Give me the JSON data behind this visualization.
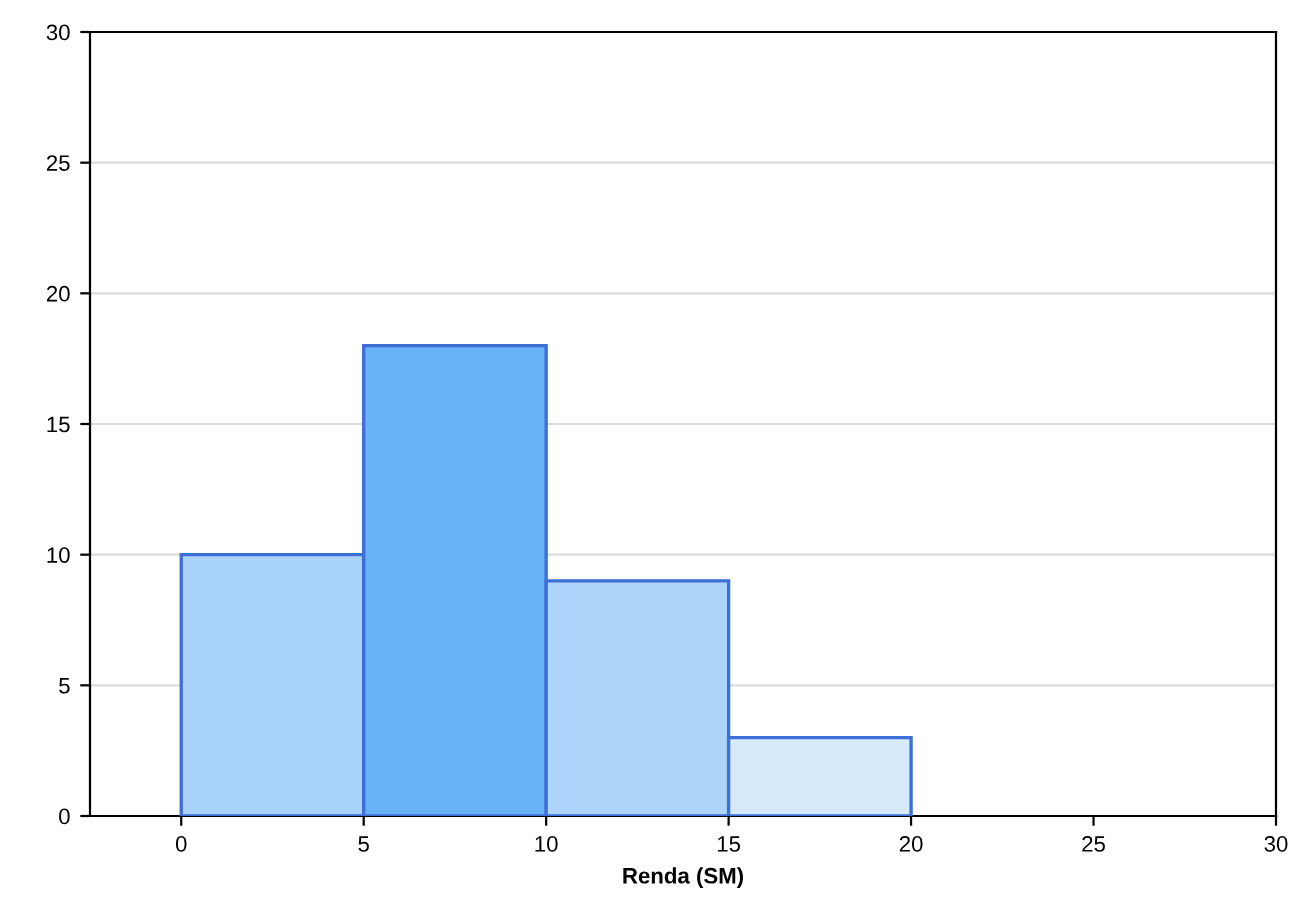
{
  "chart_data": {
    "type": "histogram",
    "xlabel": "Renda (SM)",
    "bins": [
      0,
      5,
      10,
      15,
      20
    ],
    "values": [
      10,
      18,
      9,
      3
    ],
    "colors": [
      "#a9d2fa",
      "#68b2f8",
      "#aed4fa",
      "#d6eafc"
    ],
    "xlim": [
      -2.5,
      30
    ],
    "xticks": [
      0,
      5,
      10,
      15,
      20,
      25,
      30
    ],
    "ylim": [
      0,
      30
    ],
    "yticks": [
      0,
      5,
      10,
      15,
      20,
      25,
      30
    ],
    "grid": "y"
  }
}
